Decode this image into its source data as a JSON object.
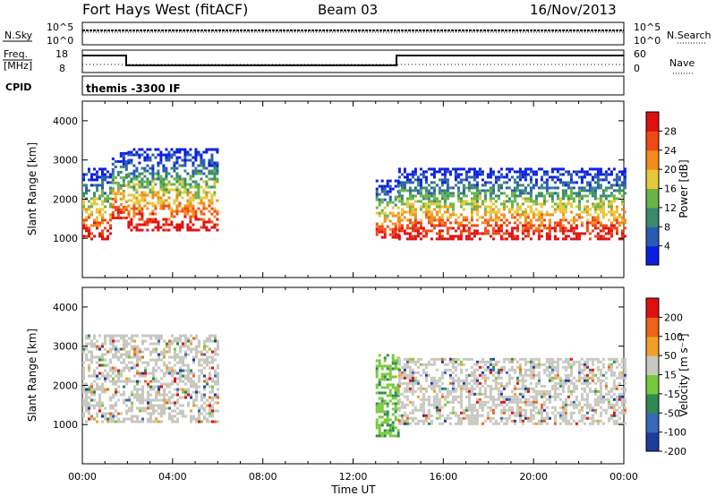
{
  "header": {
    "title": "Fort Hays West (fitACF)",
    "beam": "Beam 03",
    "date": "16/Nov/2013"
  },
  "sky_panel": {
    "left_label": "N.Sky",
    "right_label": "N.Search",
    "left_ticks": [
      "10^5",
      "10^0"
    ],
    "right_ticks": [
      "10^5",
      "10^0"
    ]
  },
  "freq_panel": {
    "label_line1": "Freq.",
    "label_line2": "[MHz]",
    "right_label": "Nave",
    "left_ticks": [
      "18",
      "8"
    ],
    "right_ticks": [
      "60",
      "0"
    ]
  },
  "cpid_panel": {
    "label": "CPID",
    "program": "themis -3300 IF"
  },
  "chart_data": [
    {
      "type": "heatmap",
      "panel": "power",
      "xlabel": "",
      "ylabel": "Slant Range [km]",
      "x_range": [
        0,
        24
      ],
      "ylim": [
        0,
        4500
      ],
      "y_ticks": [
        1000,
        2000,
        3000,
        4000
      ],
      "colorbar": {
        "label": "Power [dB]",
        "ticks": [
          "28",
          "24",
          "20",
          "16",
          "12",
          "8",
          "4"
        ],
        "colors": [
          "#0a1ee0",
          "#2a5bb4",
          "#3a8a6e",
          "#68b446",
          "#e6c83a",
          "#f28c1e",
          "#ee4a14",
          "#e01010"
        ]
      },
      "regions": [
        {
          "t0": 0.0,
          "t1": 1.3,
          "r_low": 1000,
          "r_high": 2800
        },
        {
          "t0": 1.3,
          "t1": 2.0,
          "r_low": 1500,
          "r_high": 3200
        },
        {
          "t0": 2.0,
          "t1": 6.0,
          "r_low": 1200,
          "r_high": 3300
        },
        {
          "t0": 13.0,
          "t1": 14.0,
          "r_low": 1000,
          "r_high": 2500
        },
        {
          "t0": 14.0,
          "t1": 24.0,
          "r_low": 1000,
          "r_high": 2800
        }
      ]
    },
    {
      "type": "heatmap",
      "panel": "velocity",
      "xlabel": "Time UT",
      "ylabel": "Slant Range [km]",
      "x_range": [
        0,
        24
      ],
      "x_ticks": [
        "00:00",
        "04:00",
        "08:00",
        "12:00",
        "16:00",
        "20:00",
        "00:00"
      ],
      "ylim": [
        0,
        4500
      ],
      "y_ticks": [
        1000,
        2000,
        3000,
        4000
      ],
      "colorbar": {
        "label": "Velocity [m s⁻¹]",
        "ticks": [
          "200",
          "100",
          "50",
          "15",
          "-15",
          "-50",
          "-100",
          "-200"
        ],
        "colors": [
          "#1e3c9c",
          "#3868b8",
          "#2e8a50",
          "#78c83c",
          "#c8c8c0",
          "#f0a028",
          "#ec6418",
          "#e01010"
        ]
      },
      "regions": [
        {
          "t0": 0.0,
          "t1": 6.0,
          "r_low": 1100,
          "r_high": 3300
        },
        {
          "t0": 13.0,
          "t1": 14.0,
          "r_low": 700,
          "r_high": 2800
        },
        {
          "t0": 14.0,
          "t1": 24.0,
          "r_low": 1000,
          "r_high": 2700
        }
      ]
    }
  ]
}
